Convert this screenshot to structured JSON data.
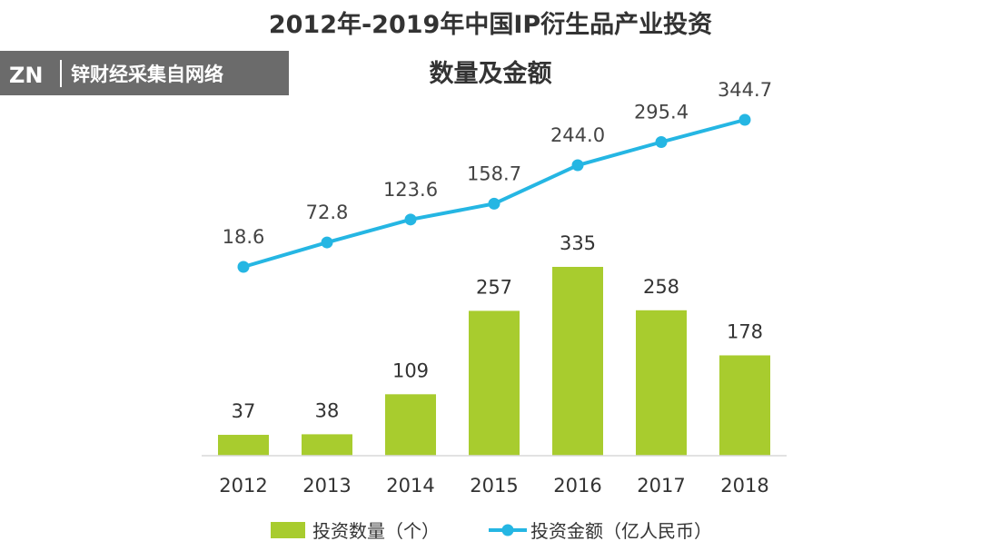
{
  "watermark": {
    "logo": "ZN",
    "text": "锌财经采集自网络",
    "bg_color": "#6b6b6b"
  },
  "colors": {
    "bar": "#a8cc2e",
    "line": "#25b6e3",
    "text": "#333333"
  },
  "chart_data": {
    "type": "bar+line",
    "title": [
      "2012年-2019年中国IP衍生品产业投资",
      "数量及金额"
    ],
    "categories": [
      "2012",
      "2013",
      "2014",
      "2015",
      "2016",
      "2017",
      "2018"
    ],
    "series": [
      {
        "name": "投资数量（个）",
        "type": "bar",
        "values": [
          37,
          38,
          109,
          257,
          335,
          258,
          178
        ],
        "labels": [
          "37",
          "38",
          "109",
          "257",
          "335",
          "258",
          "178"
        ]
      },
      {
        "name": "投资金额（亿人民币）",
        "type": "line",
        "values": [
          18.6,
          72.8,
          123.6,
          158.7,
          244.0,
          295.4,
          344.7
        ],
        "labels": [
          "18.6",
          "72.8",
          "123.6",
          "158.7",
          "244.0",
          "295.4",
          "344.7"
        ]
      }
    ],
    "legend": {
      "position": "bottom",
      "items": [
        "投资数量（个）",
        "投资金额（亿人民币）"
      ]
    }
  }
}
